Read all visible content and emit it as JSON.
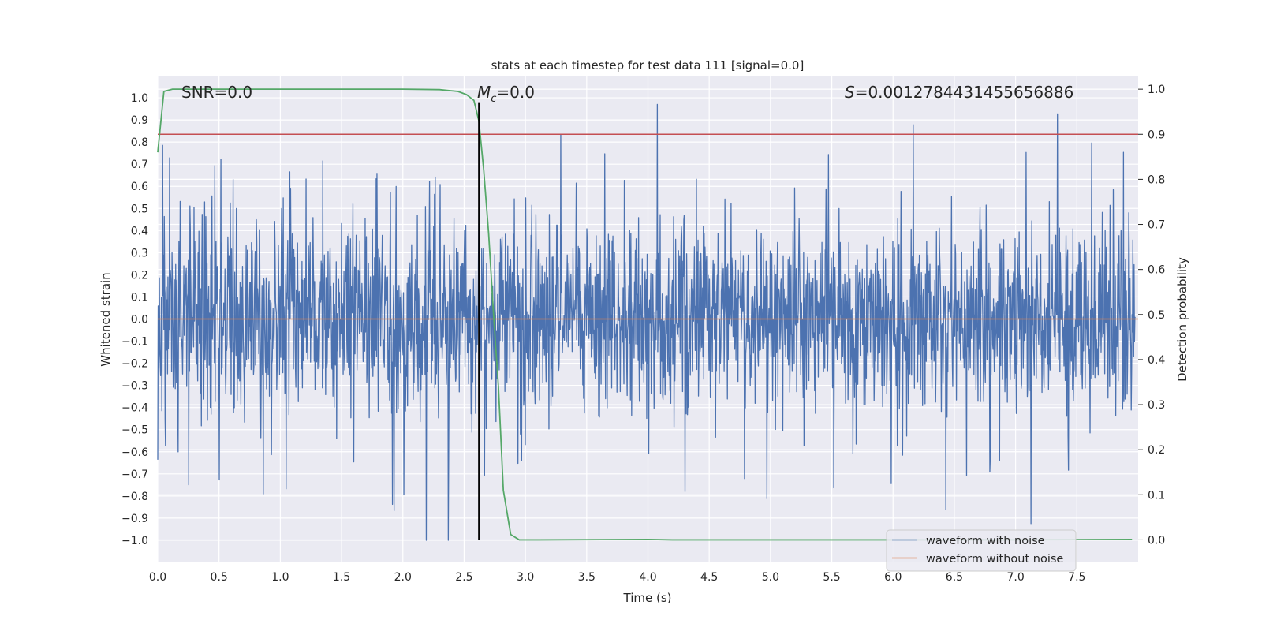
{
  "chart_data": {
    "type": "line",
    "title": "stats at each timestep for test data 111 [signal=0.0]",
    "xlabel": "Time (s)",
    "ylabel": "Whitened strain",
    "y2label": "Detection probability",
    "xlim": [
      0.0,
      8.0
    ],
    "ylim": [
      -1.1,
      1.1
    ],
    "y2lim": [
      -0.05,
      1.03
    ],
    "x_ticks": [
      "0.0",
      "0.5",
      "1.0",
      "1.5",
      "2.0",
      "2.5",
      "3.0",
      "3.5",
      "4.0",
      "4.5",
      "5.0",
      "5.5",
      "6.0",
      "6.5",
      "7.0",
      "7.5"
    ],
    "y_ticks": [
      "1.0",
      "0.9",
      "0.8",
      "0.7",
      "0.6",
      "0.5",
      "0.4",
      "0.3",
      "0.2",
      "0.1",
      "0.0",
      "−0.1",
      "−0.2",
      "−0.3",
      "−0.4",
      "−0.5",
      "−0.6",
      "−0.7",
      "−0.8",
      "−0.9",
      "−1.0"
    ],
    "y2_ticks": [
      "1.0",
      "0.9",
      "0.8",
      "0.7",
      "0.6",
      "0.5",
      "0.4",
      "0.3",
      "0.2",
      "0.1",
      "0.0"
    ],
    "annotations": {
      "snr": "SNR=0.0",
      "mc_symbol": "M",
      "mc_sub": "c",
      "mc_value": "=0.0",
      "s_symbol": "S",
      "s_value": "=0.0012784431455656886"
    },
    "grid": true,
    "legend_position": "lower-right",
    "series": [
      {
        "name": "waveform with noise",
        "color": "#4c72b0",
        "description": "whitened noisy strain oscillating roughly within ±0.4 with spikes up to ±1.0 across 0–8 s"
      },
      {
        "name": "waveform without noise",
        "color": "#dd8452",
        "values_constant": 0.0
      },
      {
        "color": "#55a868",
        "axis": "right",
        "x": [
          0.0,
          0.05,
          0.12,
          0.5,
          1.0,
          1.5,
          2.0,
          2.3,
          2.45,
          2.52,
          2.58,
          2.62,
          2.66,
          2.7,
          2.74,
          2.78,
          2.82,
          2.88,
          2.95,
          3.1,
          4.0,
          4.2,
          5.0,
          6.0,
          7.0,
          7.5,
          7.95
        ],
        "y": [
          0.86,
          0.995,
          1.0,
          1.0,
          1.0,
          1.0,
          1.0,
          0.999,
          0.995,
          0.988,
          0.975,
          0.93,
          0.82,
          0.68,
          0.5,
          0.34,
          0.11,
          0.012,
          0.0,
          0.0,
          0.001,
          0.0,
          0.0,
          0.0,
          0.0,
          0.0005,
          0.001
        ]
      },
      {
        "color": "#c44e52",
        "axis": "right",
        "values_constant": 0.9
      }
    ],
    "vlines": [
      {
        "x": 2.62,
        "color": "#000000"
      }
    ]
  }
}
